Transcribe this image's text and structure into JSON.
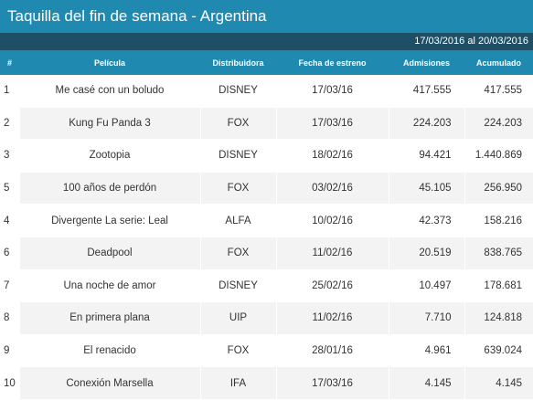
{
  "header": {
    "title": "Taquilla del fin de semana - Argentina",
    "date_range": "17/03/2016 al 20/03/2016"
  },
  "columns": {
    "rank": "#",
    "movie": "Película",
    "distributor": "Distribuidora",
    "release": "Fecha de estreno",
    "admissions": "Admisiones",
    "accumulated": "Acumulado"
  },
  "rows": [
    {
      "rank": "1",
      "movie": "Me casé con un boludo",
      "distributor": "DISNEY",
      "release": "17/03/16",
      "admissions": "417.555",
      "accumulated": "417.555"
    },
    {
      "rank": "2",
      "movie": "Kung Fu Panda 3",
      "distributor": "FOX",
      "release": "17/03/16",
      "admissions": "224.203",
      "accumulated": "224.203"
    },
    {
      "rank": "3",
      "movie": "Zootopia",
      "distributor": "DISNEY",
      "release": "18/02/16",
      "admissions": "94.421",
      "accumulated": "1.440.869"
    },
    {
      "rank": "5",
      "movie": "100 años de perdón",
      "distributor": "FOX",
      "release": "03/02/16",
      "admissions": "45.105",
      "accumulated": "256.950"
    },
    {
      "rank": "4",
      "movie": "Divergente La serie: Leal",
      "distributor": "ALFA",
      "release": "10/02/16",
      "admissions": "42.373",
      "accumulated": "158.216"
    },
    {
      "rank": "6",
      "movie": "Deadpool",
      "distributor": "FOX",
      "release": "11/02/16",
      "admissions": "20.519",
      "accumulated": "838.765"
    },
    {
      "rank": "7",
      "movie": "Una noche de amor",
      "distributor": "DISNEY",
      "release": "25/02/16",
      "admissions": "10.497",
      "accumulated": "178.681"
    },
    {
      "rank": "8",
      "movie": "En primera plana",
      "distributor": "UIP",
      "release": "11/02/16",
      "admissions": "7.710",
      "accumulated": "124.818"
    },
    {
      "rank": "9",
      "movie": "El renacido",
      "distributor": "FOX",
      "release": "28/01/16",
      "admissions": "4.961",
      "accumulated": "639.024"
    },
    {
      "rank": "10",
      "movie": "Conexión Marsella",
      "distributor": "IFA",
      "release": "17/03/16",
      "admissions": "4.145",
      "accumulated": "4.145"
    }
  ],
  "colors": {
    "title_bar": "#2089b0",
    "date_bar": "#1e4f64",
    "header_row": "#2089b0",
    "stripe": "#f3f3f3"
  }
}
